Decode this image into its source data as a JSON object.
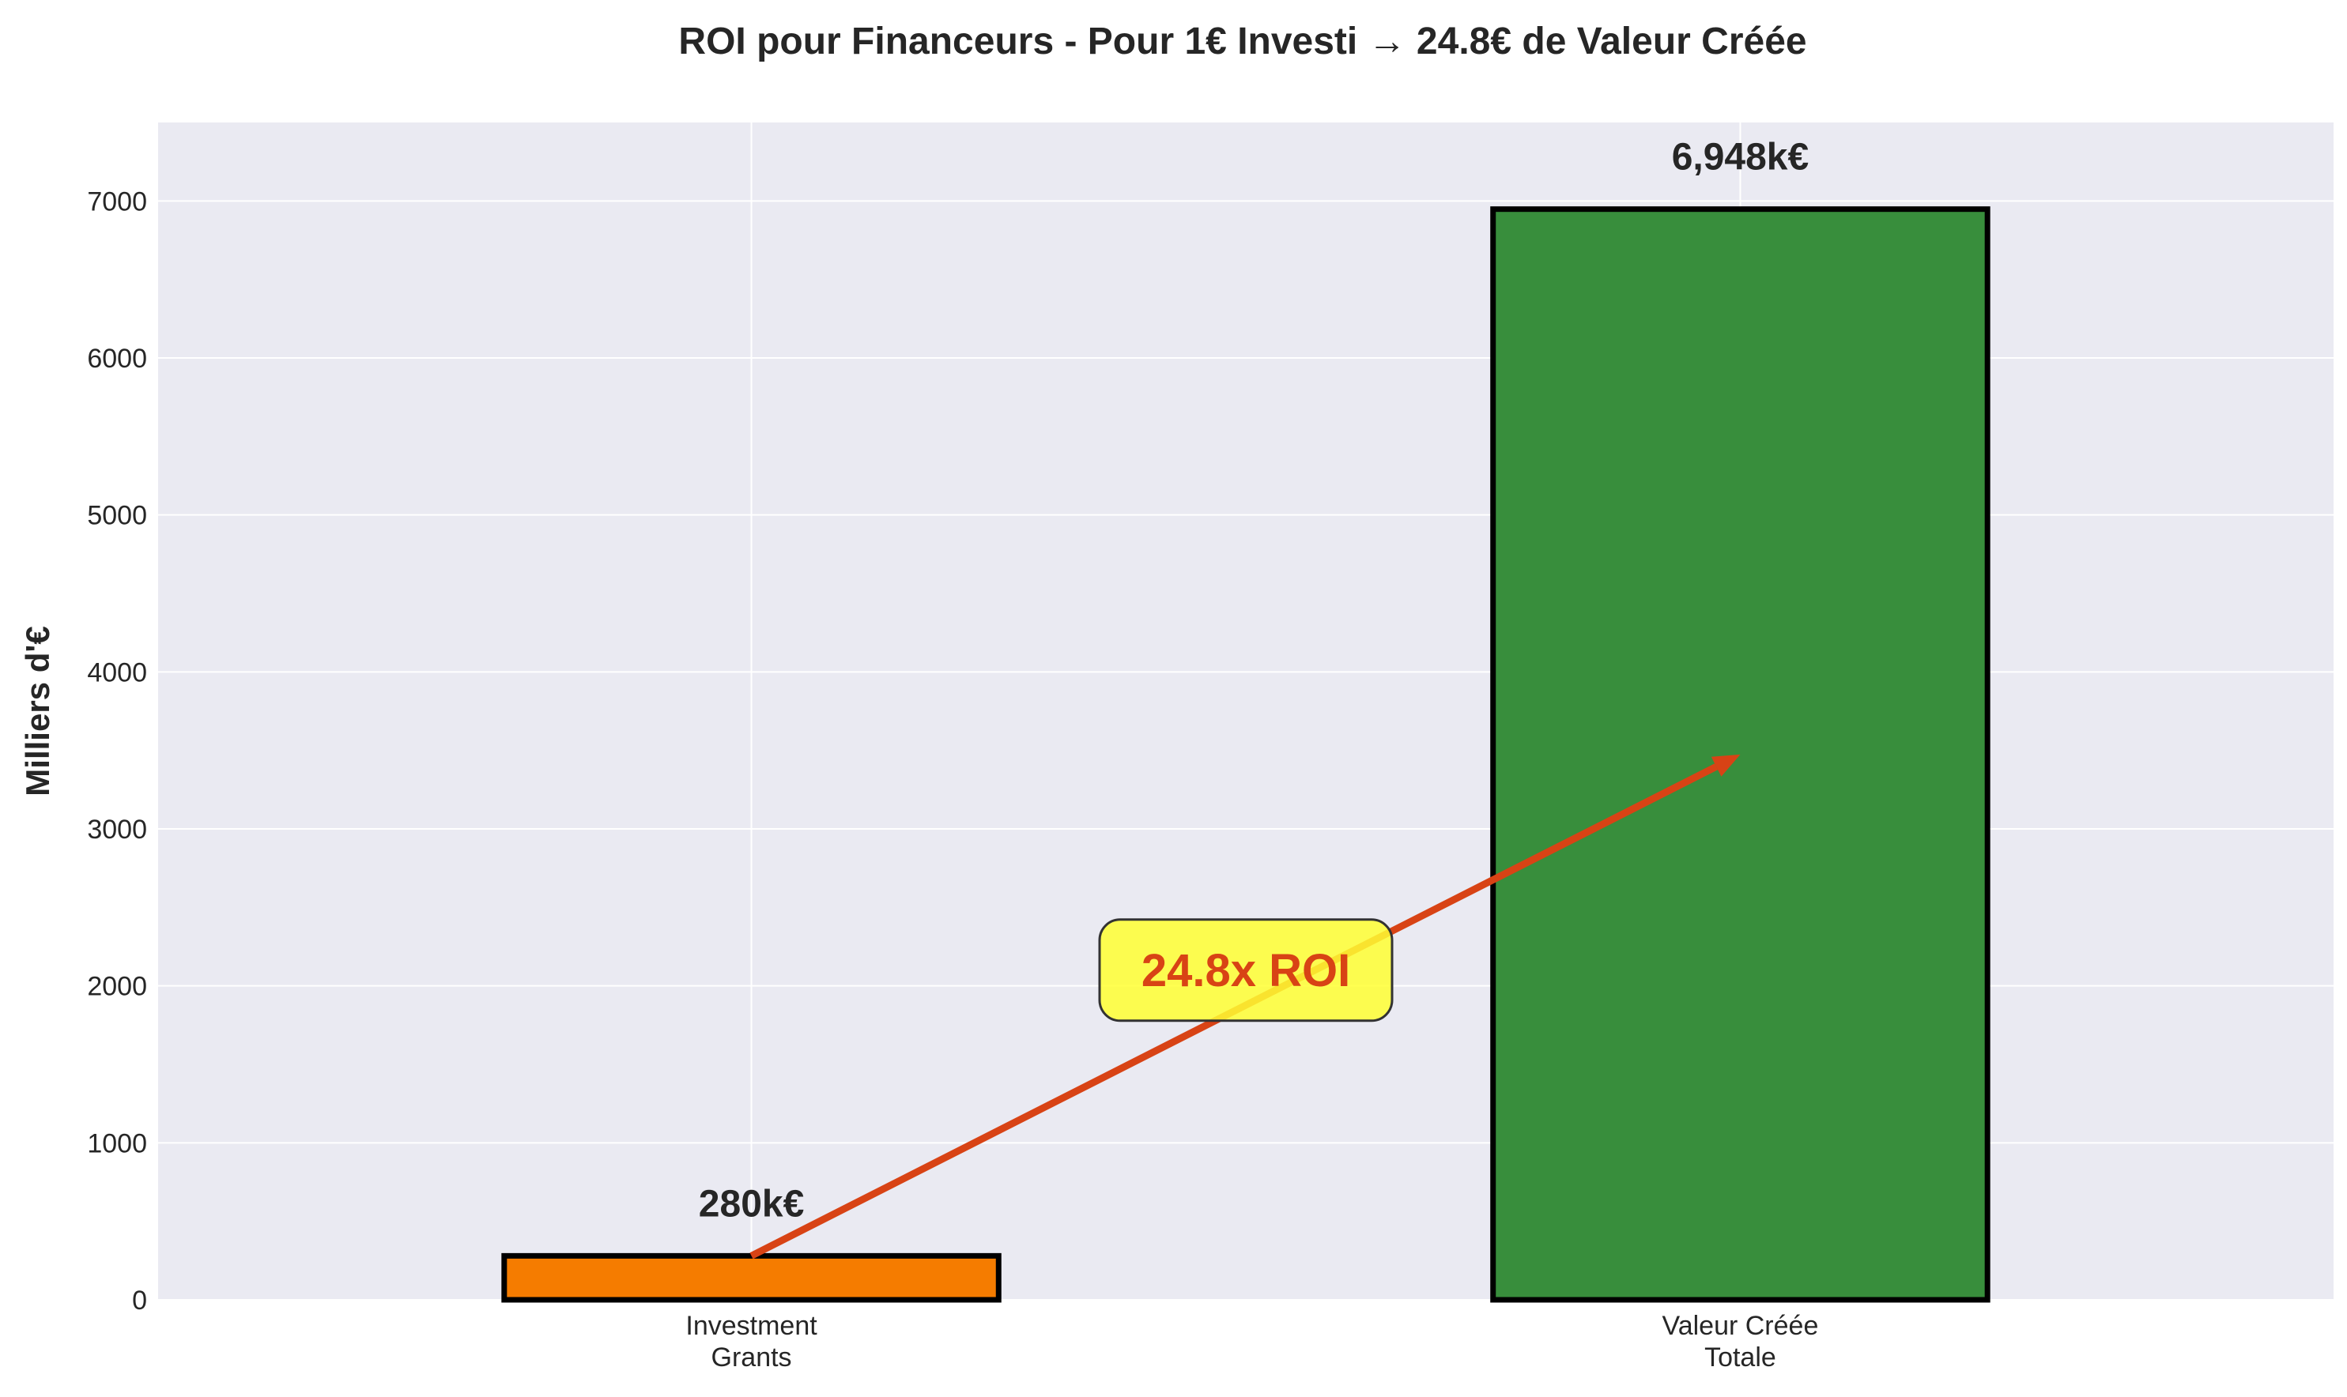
{
  "chart_data": {
    "type": "bar",
    "title": "ROI pour Financeurs - Pour 1€ Investi → 24.8€ de Valeur Créée",
    "xlabel": "",
    "ylabel": "Milliers d'€",
    "ylim": [
      0,
      7500
    ],
    "yticks": [
      0,
      1000,
      2000,
      3000,
      4000,
      5000,
      6000,
      7000
    ],
    "categories": [
      [
        "Investment",
        "Grants"
      ],
      [
        "Valeur Créée",
        "Totale"
      ]
    ],
    "values": [
      280,
      6948
    ],
    "data_labels": [
      "280k€",
      "6,948k€"
    ],
    "colors": [
      "#f57c00",
      "#388e3c"
    ],
    "grid": true,
    "annotation": {
      "text": "24.8x ROI",
      "text_color": "#d84315",
      "box_color": "#ffff33",
      "arrow_color": "#d84315",
      "arrow_from": {
        "category": 0,
        "value": 280
      },
      "arrow_to": {
        "category": 1,
        "value": 3474
      },
      "text_at": {
        "category": 0.5,
        "value": 2100
      }
    },
    "background": "#eaeaf2",
    "grid_color": "#ffffff"
  }
}
